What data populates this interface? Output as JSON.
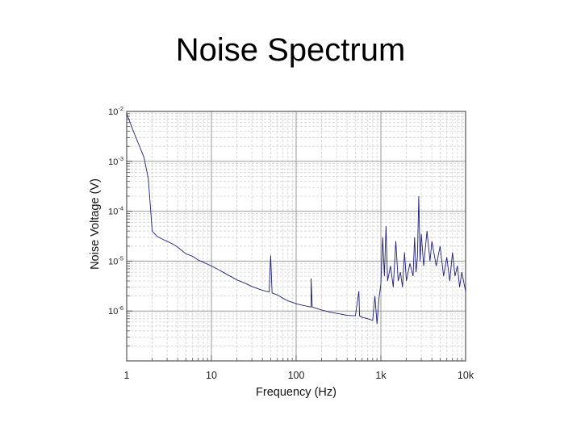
{
  "slide": {
    "title": "Noise Spectrum"
  },
  "chart_data": {
    "type": "line",
    "xlabel": "Frequency (Hz)",
    "ylabel": "Noise Voltage (V)",
    "x_scale": "log",
    "y_scale": "log",
    "xlim": [
      1,
      10000
    ],
    "ylim": [
      1e-07,
      0.01
    ],
    "x_ticks": [
      {
        "value": 1,
        "label": "1"
      },
      {
        "value": 10,
        "label": "10"
      },
      {
        "value": 100,
        "label": "100"
      },
      {
        "value": 1000,
        "label": "1k"
      },
      {
        "value": 10000,
        "label": "10k"
      }
    ],
    "y_ticks": [
      {
        "value": 0.01,
        "base": "10",
        "exp": "-2"
      },
      {
        "value": 0.001,
        "base": "10",
        "exp": "-3"
      },
      {
        "value": 0.0001,
        "base": "10",
        "exp": "-4"
      },
      {
        "value": 1e-05,
        "base": "10",
        "exp": "-5"
      },
      {
        "value": 1e-06,
        "base": "10",
        "exp": "-6"
      }
    ],
    "grid": true,
    "colors": {
      "line": "#1f1f7a",
      "major_grid": "#9a9a9a",
      "minor_grid": "#cfcfcf",
      "frame": "#555555"
    },
    "series": [
      {
        "name": "Noise Voltage",
        "points": [
          [
            1,
            0.009
          ],
          [
            1.2,
            0.004
          ],
          [
            1.4,
            0.0021
          ],
          [
            1.6,
            0.0012
          ],
          [
            1.8,
            0.00045
          ],
          [
            2.0,
            4e-05
          ],
          [
            2.3,
            3.1e-05
          ],
          [
            2.7,
            2.7e-05
          ],
          [
            3.0,
            2.5e-05
          ],
          [
            3.5,
            2.2e-05
          ],
          [
            4.0,
            1.9e-05
          ],
          [
            5.0,
            1.4e-05
          ],
          [
            6.0,
            1.25e-05
          ],
          [
            7.0,
            1.05e-05
          ],
          [
            8.0,
            9.5e-06
          ],
          [
            10,
            8e-06
          ],
          [
            12,
            6.8e-06
          ],
          [
            15,
            5.5e-06
          ],
          [
            20,
            4.2e-06
          ],
          [
            25,
            3.6e-06
          ],
          [
            30,
            3.1e-06
          ],
          [
            40,
            2.6e-06
          ],
          [
            48,
            2.4e-06
          ],
          [
            50,
            1.3e-05
          ],
          [
            52,
            2.3e-06
          ],
          [
            60,
            2.1e-06
          ],
          [
            70,
            1.8e-06
          ],
          [
            80,
            1.6e-06
          ],
          [
            100,
            1.4e-06
          ],
          [
            120,
            1.3e-06
          ],
          [
            150,
            1.2e-06
          ],
          [
            150,
            4.5e-06
          ],
          [
            155,
            1.2e-06
          ],
          [
            200,
            1.05e-06
          ],
          [
            250,
            9.5e-07
          ],
          [
            300,
            9e-07
          ],
          [
            400,
            8.2e-07
          ],
          [
            500,
            8e-07
          ],
          [
            550,
            2.5e-06
          ],
          [
            560,
            8e-07
          ],
          [
            600,
            7.5e-07
          ],
          [
            700,
            7e-07
          ],
          [
            800,
            6.5e-07
          ],
          [
            850,
            2e-06
          ],
          [
            900,
            5.5e-07
          ],
          [
            950,
            1.8e-06
          ],
          [
            1000,
            3.5e-06
          ],
          [
            1050,
            3e-05
          ],
          [
            1100,
            5e-06
          ],
          [
            1150,
            5e-05
          ],
          [
            1200,
            4e-06
          ],
          [
            1300,
            8e-06
          ],
          [
            1400,
            3e-06
          ],
          [
            1500,
            2.5e-05
          ],
          [
            1600,
            4e-06
          ],
          [
            1700,
            6e-06
          ],
          [
            1800,
            3e-06
          ],
          [
            1900,
            1.5e-05
          ],
          [
            2000,
            4e-06
          ],
          [
            2200,
            9e-06
          ],
          [
            2400,
            5e-06
          ],
          [
            2500,
            3e-05
          ],
          [
            2600,
            6e-06
          ],
          [
            2700,
            1.2e-05
          ],
          [
            2800,
            0.0002
          ],
          [
            2900,
            1e-05
          ],
          [
            3000,
            3.5e-05
          ],
          [
            3200,
            8e-06
          ],
          [
            3500,
            4e-05
          ],
          [
            3800,
            1e-05
          ],
          [
            4000,
            2.5e-05
          ],
          [
            4500,
            8e-06
          ],
          [
            5000,
            2e-05
          ],
          [
            5500,
            5e-06
          ],
          [
            6000,
            1.2e-05
          ],
          [
            6500,
            4e-06
          ],
          [
            7000,
            1.5e-05
          ],
          [
            7500,
            5e-06
          ],
          [
            8000,
            8e-06
          ],
          [
            8500,
            3e-06
          ],
          [
            9000,
            6e-06
          ],
          [
            10000,
            2.5e-06
          ]
        ]
      }
    ]
  }
}
